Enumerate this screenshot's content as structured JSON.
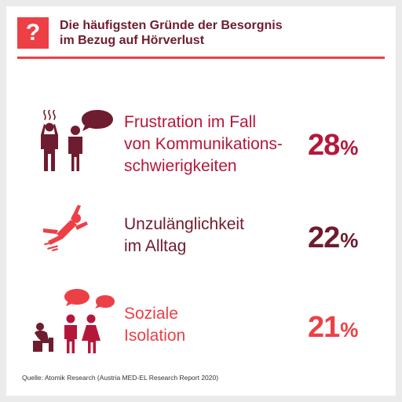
{
  "header": {
    "icon_glyph": "?",
    "title_line1": "Die häufigsten Gründe der Besorgnis",
    "title_line2": "im Bezug auf Hörverlust"
  },
  "colors": {
    "accent_red": "#ec4046",
    "crimson": "#b5173b",
    "maroon": "#6e1c2f"
  },
  "reasons": [
    {
      "label_line1": "Frustration im Fall",
      "label_line2": "von Kommunikations-",
      "label_line3": "schwierigkeiten",
      "percent": "28",
      "percent_sign": "%",
      "icon": "frustrated-conversation-icon"
    },
    {
      "label_line1": "Unzulänglichkeit",
      "label_line2": "im Alltag",
      "percent": "22",
      "percent_sign": "%",
      "icon": "falling-person-icon"
    },
    {
      "label_line1": "Soziale",
      "label_line2": "Isolation",
      "percent": "21",
      "percent_sign": "%",
      "icon": "social-isolation-icon"
    }
  ],
  "source": "Quelle: Atomik Research (Austria MED-EL Research Report 2020)"
}
